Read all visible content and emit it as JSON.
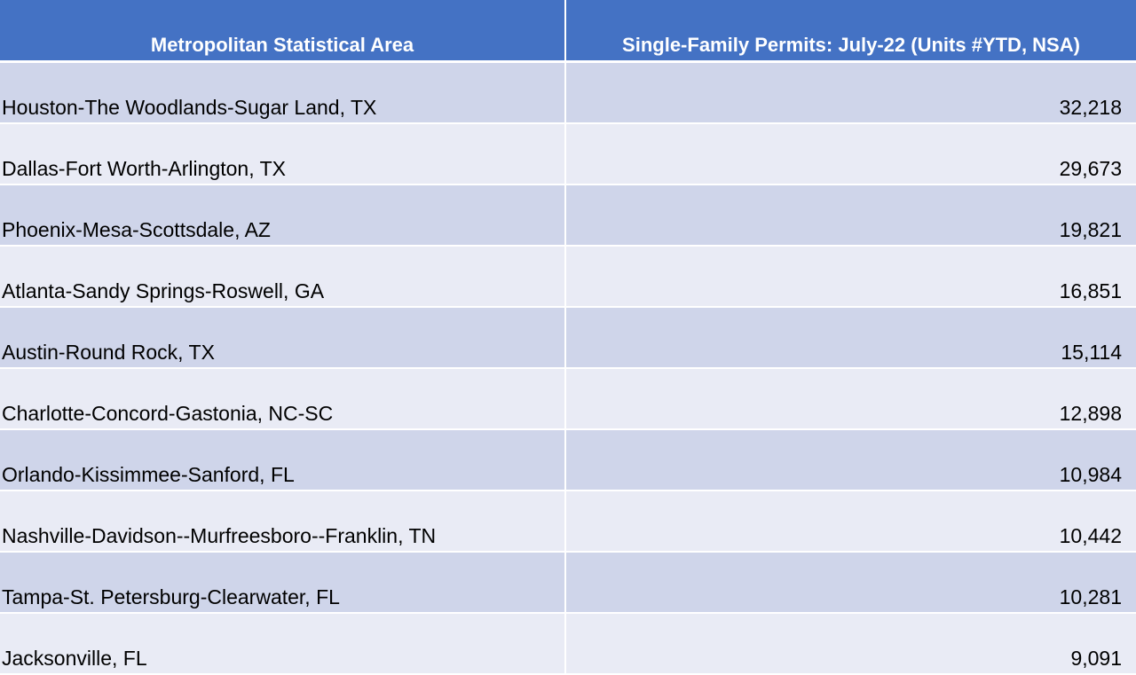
{
  "table": {
    "headers": {
      "area": "Metropolitan Statistical Area",
      "permits": "Single-Family Permits: July-22 (Units #YTD, NSA)"
    },
    "rows": [
      {
        "area": "Houston-The Woodlands-Sugar Land, TX",
        "value": "32,218"
      },
      {
        "area": "Dallas-Fort Worth-Arlington, TX",
        "value": "29,673"
      },
      {
        "area": "Phoenix-Mesa-Scottsdale, AZ",
        "value": "19,821"
      },
      {
        "area": "Atlanta-Sandy Springs-Roswell, GA",
        "value": "16,851"
      },
      {
        "area": "Austin-Round Rock, TX",
        "value": "15,114"
      },
      {
        "area": "Charlotte-Concord-Gastonia, NC-SC",
        "value": "12,898"
      },
      {
        "area": "Orlando-Kissimmee-Sanford, FL",
        "value": "10,984"
      },
      {
        "area": "Nashville-Davidson--Murfreesboro--Franklin, TN",
        "value": "10,442"
      },
      {
        "area": "Tampa-St. Petersburg-Clearwater, FL",
        "value": "10,281"
      },
      {
        "area": "Jacksonville, FL",
        "value": "9,091"
      }
    ]
  },
  "colors": {
    "header_bg": "#4472c4",
    "header_text": "#ffffff",
    "row_dark": "#cfd5ea",
    "row_light": "#e9ebf5"
  }
}
